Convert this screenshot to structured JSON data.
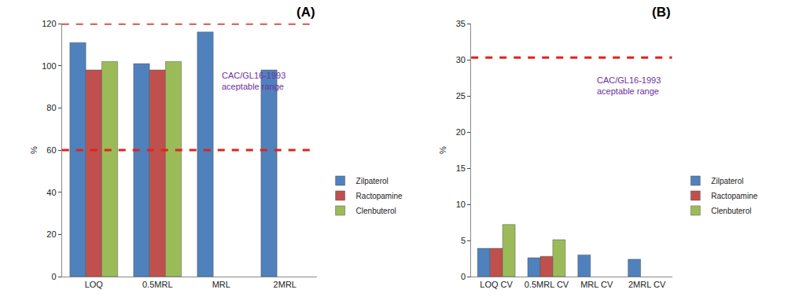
{
  "chart_data": [
    {
      "type": "bar",
      "title": "(A)",
      "y_label": "%",
      "categories": [
        "LOQ",
        "0.5MRL",
        "MRL",
        "2MRL"
      ],
      "series": [
        {
          "name": "Zilpaterol",
          "color": "#4f81bd",
          "values": [
            111,
            101,
            116,
            98
          ]
        },
        {
          "name": "Ractopamine",
          "color": "#c0504d",
          "values": [
            98,
            98,
            null,
            null
          ]
        },
        {
          "name": "Clenbuterol",
          "color": "#9bbb59",
          "values": [
            102,
            102,
            null,
            null
          ]
        }
      ],
      "ylim": [
        0,
        120
      ],
      "yticks": [
        0,
        20,
        40,
        60,
        80,
        100,
        120
      ],
      "reference_lines": {
        "values": [
          60,
          120
        ],
        "label": "CAC/GL16-1993\naceptable range"
      },
      "grid": false,
      "legend": "right"
    },
    {
      "type": "bar",
      "title": "(B)",
      "y_label": "%",
      "categories": [
        "LOQ CV",
        "0.5MRL CV",
        "MRL CV",
        "2MRL CV"
      ],
      "series": [
        {
          "name": "Zilpaterol",
          "color": "#4f81bd",
          "values": [
            3.9,
            2.6,
            3.0,
            2.4
          ]
        },
        {
          "name": "Ractopamine",
          "color": "#c0504d",
          "values": [
            3.9,
            2.8,
            null,
            null
          ]
        },
        {
          "name": "Clenbuterol",
          "color": "#9bbb59",
          "values": [
            7.2,
            5.1,
            null,
            null
          ]
        }
      ],
      "ylim": [
        0,
        35
      ],
      "yticks": [
        0,
        5,
        10,
        15,
        20,
        25,
        30,
        35
      ],
      "reference_lines": {
        "values": [
          30.3
        ],
        "label": "CAC/GL16-1993\naceptable range"
      },
      "grid": false,
      "legend": "right"
    }
  ]
}
